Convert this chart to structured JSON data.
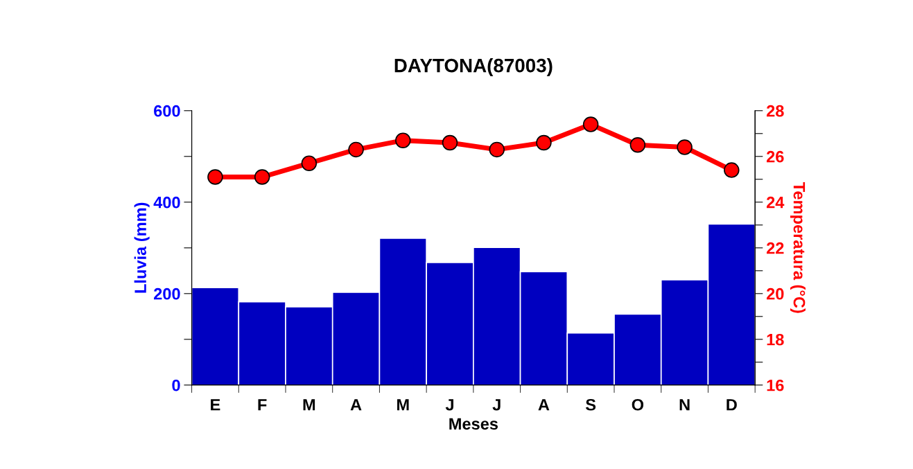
{
  "chart_data": {
    "type": "bar",
    "title": "DAYTONA(87003)",
    "xlabel": "Meses",
    "ylabel": "Lluvia (mm)",
    "y2label": "Temperatura (°C)",
    "categories": [
      "E",
      "F",
      "M",
      "A",
      "M",
      "J",
      "J",
      "A",
      "S",
      "O",
      "N",
      "D"
    ],
    "series": [
      {
        "color": "#0000c0",
        "values": [
          213,
          182,
          171,
          203,
          321,
          268,
          301,
          248,
          114,
          155,
          230,
          352
        ]
      },
      {
        "type": "line",
        "axis": "y2",
        "color": "#ff0000",
        "marker": "circle",
        "values": [
          25.1,
          25.1,
          25.7,
          26.3,
          26.7,
          26.6,
          26.3,
          26.6,
          27.4,
          26.5,
          26.4,
          25.4
        ]
      }
    ],
    "ylim": [
      0,
      600
    ],
    "yticks": [
      0,
      {
        "value": 100,
        "label": null
      },
      200,
      {
        "value": 300,
        "label": null
      },
      400,
      {
        "value": 500,
        "label": null
      },
      600
    ],
    "y2lim": [
      16,
      28
    ],
    "y2ticks": [
      16,
      {
        "value": 17,
        "label": null
      },
      18,
      {
        "value": 19,
        "label": null
      },
      20,
      {
        "value": 21,
        "label": null
      },
      22,
      {
        "value": 23,
        "label": null
      },
      24,
      {
        "value": 25,
        "label": null
      },
      26,
      {
        "value": 27,
        "label": null
      },
      28
    ],
    "grid": false,
    "legend": false
  }
}
